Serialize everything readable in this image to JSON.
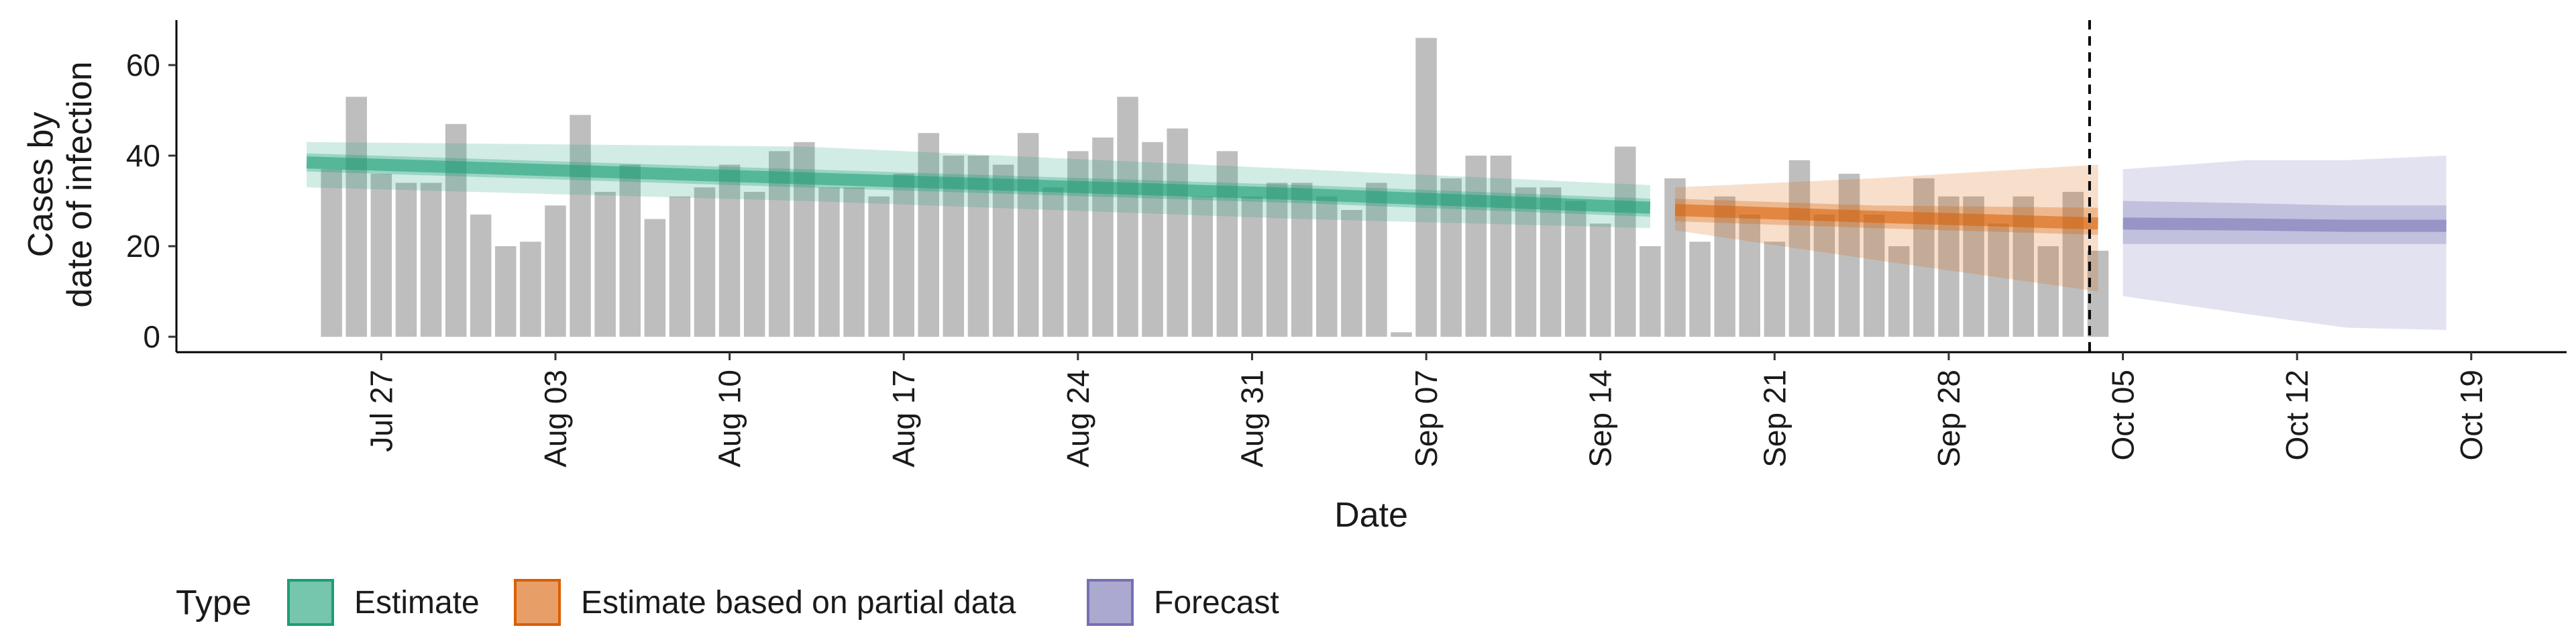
{
  "chart_data": {
    "type": "bar",
    "xlabel": "Date",
    "ylabel": [
      "Cases by",
      "date of infection"
    ],
    "ylim": [
      0,
      70
    ],
    "yticks": [
      0,
      20,
      40,
      60
    ],
    "xticks": [
      "Jul 27",
      "Aug 03",
      "Aug 10",
      "Aug 17",
      "Aug 24",
      "Aug 31",
      "Sep 07",
      "Sep 14",
      "Sep 21",
      "Sep 28",
      "Oct 05",
      "Oct 12",
      "Oct 19"
    ],
    "x_range": [
      "2020-07-23",
      "2020-10-21"
    ],
    "forecast_cutoff": "2020-10-04",
    "bars": {
      "start_date": "2020-07-25",
      "values": [
        37,
        53,
        36,
        34,
        34,
        47,
        27,
        20,
        21,
        29,
        49,
        32,
        38,
        26,
        31,
        33,
        38,
        32,
        41,
        43,
        33,
        33,
        31,
        36,
        45,
        40,
        40,
        38,
        45,
        33,
        41,
        44,
        53,
        43,
        46,
        31,
        41,
        31,
        34,
        34,
        31,
        28,
        34,
        1,
        66,
        35,
        40,
        40,
        33,
        33,
        30,
        25,
        42,
        20,
        35,
        21,
        31,
        27,
        21,
        39,
        27,
        36,
        27,
        20,
        35,
        31,
        31,
        25,
        31,
        20,
        32,
        19
      ],
      "color": "#BEBEBE"
    },
    "series": [
      {
        "name": "Estimate",
        "color": "#1B9E77",
        "dates": [
          "2020-07-24",
          "2020-08-13",
          "2020-09-02",
          "2020-09-16"
        ],
        "median": [
          38.5,
          35,
          31.5,
          28.5
        ],
        "inner": [
          [
            36.5,
            40.5
          ],
          [
            33,
            37
          ],
          [
            29.5,
            33.5
          ],
          [
            26.5,
            30.5
          ]
        ],
        "outer": [
          [
            33,
            43
          ],
          [
            30,
            42
          ],
          [
            26,
            37
          ],
          [
            24,
            33.5
          ]
        ]
      },
      {
        "name": "Estimate based on partial data",
        "color": "#D95F02",
        "dates": [
          "2020-09-17",
          "2020-09-25",
          "2020-10-04"
        ],
        "median": [
          28,
          26.5,
          25
        ],
        "inner": [
          [
            25.5,
            30.5
          ],
          [
            24,
            29
          ],
          [
            22.5,
            28.5
          ]
        ],
        "outer": [
          [
            23.5,
            33
          ],
          [
            17,
            35
          ],
          [
            10,
            38
          ]
        ]
      },
      {
        "name": "Forecast",
        "color": "#7570B3",
        "dates": [
          "2020-10-05",
          "2020-10-10",
          "2020-10-14",
          "2020-10-18"
        ],
        "median": [
          25,
          24.8,
          24.5,
          24.5
        ],
        "inner": [
          [
            20.5,
            30
          ],
          [
            20.5,
            29.5
          ],
          [
            20.5,
            29
          ],
          [
            20.5,
            29
          ]
        ],
        "outer": [
          [
            9,
            37
          ],
          [
            5,
            39
          ],
          [
            2,
            39
          ],
          [
            1.5,
            40
          ]
        ]
      }
    ],
    "grid": false,
    "legend": {
      "title": "Type",
      "position": "bottom",
      "entries": [
        "Estimate",
        "Estimate based on partial data",
        "Forecast"
      ]
    }
  }
}
